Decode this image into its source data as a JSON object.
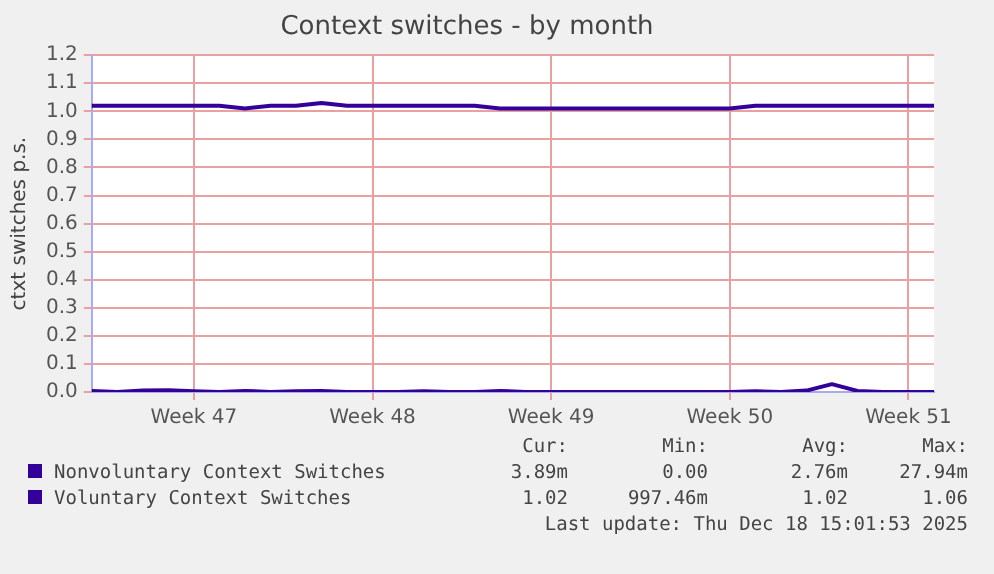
{
  "chart_data": {
    "type": "line",
    "title": "Context switches - by month",
    "ylabel": "ctxt switches p.s.",
    "categories": [
      null,
      null,
      null,
      null,
      "Week 47",
      null,
      null,
      null,
      null,
      null,
      null,
      "Week 48",
      null,
      null,
      null,
      null,
      null,
      null,
      "Week 49",
      null,
      null,
      null,
      null,
      null,
      null,
      "Week 50",
      null,
      null,
      null,
      null,
      null,
      null,
      "Week 51",
      null
    ],
    "ylim": [
      0,
      1.2
    ],
    "yticks": [
      {
        "value": 0,
        "label": "0.0"
      },
      {
        "value": 0.1,
        "label": "0.1"
      },
      {
        "value": 0.2,
        "label": "0.2"
      },
      {
        "value": 0.3,
        "label": "0.3"
      },
      {
        "value": 0.4,
        "label": "0.4"
      },
      {
        "value": 0.5,
        "label": "0.5"
      },
      {
        "value": 0.6,
        "label": "0.6"
      },
      {
        "value": 0.7,
        "label": "0.7"
      },
      {
        "value": 0.8,
        "label": "0.8"
      },
      {
        "value": 0.9,
        "label": "0.9"
      },
      {
        "value": 1.0,
        "label": "1.0"
      },
      {
        "value": 1.1,
        "label": "1.1"
      },
      {
        "value": 1.2,
        "label": "1.2"
      }
    ],
    "series": [
      {
        "name": "Nonvoluntary Context Switches",
        "color": "#330099",
        "values": [
          0.004,
          0,
          0.005,
          0.006,
          0.003,
          0,
          0.004,
          0,
          0.003,
          0.004,
          0,
          0,
          0,
          0.003,
          0,
          0,
          0.004,
          0,
          0,
          0,
          0,
          0,
          0,
          0,
          0,
          0,
          0.003,
          0,
          0.005,
          0.028,
          0.004,
          0,
          0,
          0
        ]
      },
      {
        "name": "Voluntary Context Switches",
        "color": "#330099",
        "values": [
          1.02,
          1.02,
          1.02,
          1.02,
          1.02,
          1.02,
          1.01,
          1.02,
          1.02,
          1.03,
          1.02,
          1.02,
          1.02,
          1.02,
          1.02,
          1.02,
          1.01,
          1.01,
          1.01,
          1.01,
          1.01,
          1.01,
          1.01,
          1.01,
          1.01,
          1.01,
          1.02,
          1.02,
          1.02,
          1.02,
          1.02,
          1.02,
          1.02,
          1.02
        ]
      }
    ],
    "grid": true,
    "legend": "bottom",
    "marker": "none",
    "line_style": "solid",
    "annotations": [
      "Cur:",
      "Min:",
      "Avg:",
      "Max:",
      "3.89m",
      "0.00",
      "2.76m",
      "27.94m",
      "1.02",
      "997.46m",
      "1.02",
      "1.06",
      "Last update: Thu Dec 18 15:01:53 2025"
    ]
  }
}
